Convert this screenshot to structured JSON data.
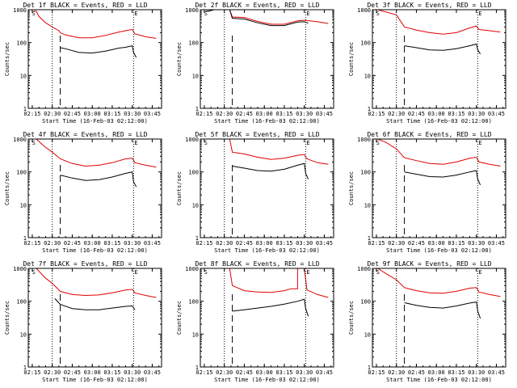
{
  "figure": {
    "background": "#ffffff"
  },
  "colors": {
    "events": "#000000",
    "lld": "#e00000",
    "axis": "#000000"
  },
  "chart_data": [
    {
      "panel": "1f",
      "title": "Det 1f BLACK = Events, RED = LLD",
      "type": "line",
      "ylabel": "Counts/sec",
      "xlabel": "Start Time (16-Feb-03 02:12:00)",
      "x_ticks": [
        "02:15",
        "02:30",
        "02:45",
        "03:00",
        "03:15",
        "03:30",
        "03:45"
      ],
      "y_ticks": [
        "1",
        "10",
        "100",
        "1000"
      ],
      "y_scale": "log",
      "ylim": [
        1,
        1000
      ],
      "xlim": [
        "02:12",
        "03:52"
      ],
      "markers": {
        "S": "02:16",
        "E": "03:31"
      },
      "vlines_dotted": [
        "02:30",
        "03:31"
      ],
      "vline_dashed": "02:36",
      "series": [
        {
          "color": "red",
          "x": [
            "02:16",
            "02:18",
            "02:20",
            "02:25",
            "02:30",
            "02:35",
            "02:36",
            "02:40",
            "02:50",
            "03:00",
            "03:10",
            "03:20",
            "03:25",
            "03:30",
            "03:32",
            "03:40",
            "03:48"
          ],
          "y": [
            900,
            900,
            620,
            400,
            300,
            230,
            200,
            170,
            140,
            140,
            165,
            210,
            230,
            250,
            185,
            150,
            135
          ]
        },
        {
          "color": "black",
          "x": [
            "02:36",
            "02:40",
            "02:50",
            "03:00",
            "03:10",
            "03:20",
            "03:25",
            "03:30",
            "03:31",
            "03:33"
          ],
          "y": [
            70,
            65,
            50,
            48,
            55,
            68,
            72,
            80,
            50,
            35
          ]
        }
      ]
    },
    {
      "panel": "2f",
      "title": "Det 2f BLACK = Events, RED = LLD",
      "type": "line",
      "ylabel": "Counts/sec",
      "xlabel": "Start Time (16-Feb-03 02:12:00)",
      "x_ticks": [
        "02:15",
        "02:30",
        "02:45",
        "03:00",
        "03:15",
        "03:30",
        "03:45"
      ],
      "y_ticks": [
        "1",
        "10",
        "100",
        "1000"
      ],
      "y_scale": "log",
      "ylim": [
        1,
        1000
      ],
      "xlim": [
        "02:12",
        "03:52"
      ],
      "markers": {
        "S": "02:16",
        "E": "03:31"
      },
      "vlines_dotted": [
        "02:30",
        "03:31"
      ],
      "vline_dashed": "02:36",
      "series": [
        {
          "color": "red",
          "x": [
            "02:16",
            "02:18",
            "02:22",
            "02:24",
            "02:34",
            "02:36",
            "02:45",
            "02:55",
            "03:05",
            "03:15",
            "03:25",
            "03:30",
            "03:40",
            "03:48"
          ],
          "y": [
            900,
            900,
            1000,
            1000,
            1000,
            600,
            580,
            440,
            360,
            360,
            460,
            480,
            430,
            380
          ]
        },
        {
          "color": "black",
          "x": [
            "02:16",
            "02:18",
            "02:22",
            "02:24",
            "02:34",
            "02:36",
            "02:45",
            "02:55",
            "03:05",
            "03:15",
            "03:25",
            "03:30",
            "03:33"
          ],
          "y": [
            900,
            900,
            1000,
            1000,
            1000,
            550,
            520,
            400,
            330,
            330,
            420,
            430,
            390
          ]
        }
      ]
    },
    {
      "panel": "3f",
      "title": "Det 3f BLACK = Events, RED = LLD",
      "type": "line",
      "ylabel": "Counts/sec",
      "xlabel": "Start Time (16-Feb-03 02:12:00)",
      "x_ticks": [
        "02:15",
        "02:30",
        "02:45",
        "03:00",
        "03:15",
        "03:30",
        "03:45"
      ],
      "y_ticks": [
        "1",
        "10",
        "100",
        "1000"
      ],
      "y_scale": "log",
      "ylim": [
        1,
        1000
      ],
      "xlim": [
        "02:12",
        "03:52"
      ],
      "markers": {
        "S": "02:16",
        "E": "03:31"
      },
      "vlines_dotted": [
        "02:30",
        "03:31"
      ],
      "vline_dashed": "02:36",
      "series": [
        {
          "color": "red",
          "x": [
            "02:16",
            "02:20",
            "02:30",
            "02:36",
            "02:45",
            "02:55",
            "03:05",
            "03:15",
            "03:25",
            "03:30",
            "03:32",
            "03:40",
            "03:48"
          ],
          "y": [
            1000,
            900,
            700,
            300,
            240,
            200,
            180,
            200,
            280,
            320,
            250,
            230,
            210
          ]
        },
        {
          "color": "black",
          "x": [
            "02:36",
            "02:45",
            "02:55",
            "03:05",
            "03:15",
            "03:25",
            "03:30",
            "03:31",
            "03:33"
          ],
          "y": [
            80,
            70,
            60,
            58,
            65,
            80,
            90,
            60,
            45
          ]
        }
      ]
    },
    {
      "panel": "4f",
      "title": "Det 4f BLACK = Events, RED = LLD",
      "type": "line",
      "ylabel": "Counts/sec",
      "xlabel": "Start Time (16-Feb-03 02:12:00)",
      "x_ticks": [
        "02:15",
        "02:30",
        "02:45",
        "03:00",
        "03:15",
        "03:30",
        "03:45"
      ],
      "y_ticks": [
        "1",
        "10",
        "100",
        "1000"
      ],
      "y_scale": "log",
      "ylim": [
        1,
        1000
      ],
      "xlim": [
        "02:12",
        "03:52"
      ],
      "markers": {
        "S": "02:16",
        "E": "03:31"
      },
      "vlines_dotted": [
        "02:30",
        "03:31"
      ],
      "vline_dashed": "02:36",
      "series": [
        {
          "color": "red",
          "x": [
            "02:18",
            "02:24",
            "02:30",
            "02:36",
            "02:45",
            "02:55",
            "03:05",
            "03:15",
            "03:25",
            "03:30",
            "03:32",
            "03:40",
            "03:48"
          ],
          "y": [
            1000,
            600,
            400,
            250,
            180,
            150,
            160,
            190,
            250,
            260,
            190,
            160,
            140
          ]
        },
        {
          "color": "black",
          "x": [
            "02:36",
            "02:45",
            "02:55",
            "03:05",
            "03:15",
            "03:25",
            "03:30",
            "03:31",
            "03:33"
          ],
          "y": [
            80,
            65,
            55,
            58,
            70,
            90,
            100,
            50,
            35
          ]
        }
      ]
    },
    {
      "panel": "5f",
      "title": "Det 5f BLACK = Events, RED = LLD",
      "type": "line",
      "ylabel": "Counts/sec",
      "xlabel": "Start Time (16-Feb-03 02:12:00)",
      "x_ticks": [
        "02:15",
        "02:30",
        "02:45",
        "03:00",
        "03:15",
        "03:30",
        "03:45"
      ],
      "y_ticks": [
        "1",
        "10",
        "100",
        "1000"
      ],
      "y_scale": "log",
      "ylim": [
        1,
        1000
      ],
      "xlim": [
        "02:12",
        "03:52"
      ],
      "markers": {
        "S": "02:16",
        "E": "03:31"
      },
      "vlines_dotted": [
        "02:30",
        "03:31"
      ],
      "vline_dashed": "02:36",
      "series": [
        {
          "color": "red",
          "x": [
            "02:18",
            "02:24",
            "02:30",
            "02:34",
            "02:36",
            "02:45",
            "02:55",
            "03:05",
            "03:15",
            "03:25",
            "03:30",
            "03:32",
            "03:40",
            "03:48"
          ],
          "y": [
            1000,
            1000,
            1000,
            1000,
            400,
            350,
            280,
            240,
            260,
            320,
            340,
            250,
            190,
            170
          ]
        },
        {
          "color": "black",
          "x": [
            "02:36",
            "02:45",
            "02:55",
            "03:05",
            "03:15",
            "03:25",
            "03:30",
            "03:31",
            "03:33"
          ],
          "y": [
            150,
            130,
            110,
            105,
            120,
            160,
            180,
            90,
            60
          ]
        }
      ]
    },
    {
      "panel": "6f",
      "title": "Det 6f BLACK = Events, RED = LLD",
      "type": "line",
      "ylabel": "Counts/sec",
      "xlabel": "Start Time (16-Feb-03 02:12:00)",
      "x_ticks": [
        "02:15",
        "02:30",
        "02:45",
        "03:00",
        "03:15",
        "03:30",
        "03:45"
      ],
      "y_ticks": [
        "1",
        "10",
        "100",
        "1000"
      ],
      "y_scale": "log",
      "ylim": [
        1,
        1000
      ],
      "xlim": [
        "02:12",
        "03:52"
      ],
      "markers": {
        "S": "02:16",
        "E": "03:31"
      },
      "vlines_dotted": [
        "02:30",
        "03:31"
      ],
      "vline_dashed": "02:36",
      "series": [
        {
          "color": "red",
          "x": [
            "02:16",
            "02:22",
            "02:30",
            "02:36",
            "02:45",
            "02:55",
            "03:05",
            "03:15",
            "03:25",
            "03:30",
            "03:32",
            "03:40",
            "03:48"
          ],
          "y": [
            1000,
            800,
            500,
            270,
            220,
            180,
            170,
            200,
            260,
            280,
            200,
            170,
            150
          ]
        },
        {
          "color": "black",
          "x": [
            "02:36",
            "02:45",
            "02:55",
            "03:05",
            "03:15",
            "03:25",
            "03:30",
            "03:31",
            "03:33"
          ],
          "y": [
            100,
            85,
            72,
            70,
            80,
            100,
            110,
            60,
            40
          ]
        }
      ]
    },
    {
      "panel": "7f",
      "title": "Det 7f BLACK = Events, RED = LLD",
      "type": "line",
      "ylabel": "Counts/sec",
      "xlabel": "Start Time (16-Feb-03 02:12:00)",
      "x_ticks": [
        "02:15",
        "02:30",
        "02:45",
        "03:00",
        "03:15",
        "03:30",
        "03:45"
      ],
      "y_ticks": [
        "1",
        "10",
        "100",
        "1000"
      ],
      "y_scale": "log",
      "ylim": [
        1,
        1000
      ],
      "xlim": [
        "02:12",
        "03:52"
      ],
      "markers": {
        "S": "02:16",
        "E": "03:31"
      },
      "vlines_dotted": [
        "02:30",
        "03:31"
      ],
      "vline_dashed": "02:36",
      "series": [
        {
          "color": "red",
          "x": [
            "02:18",
            "02:25",
            "02:30",
            "02:36",
            "02:45",
            "02:55",
            "03:05",
            "03:15",
            "03:25",
            "03:30",
            "03:32",
            "03:40",
            "03:48"
          ],
          "y": [
            1000,
            500,
            350,
            200,
            160,
            150,
            155,
            180,
            220,
            230,
            180,
            150,
            130
          ]
        },
        {
          "color": "black",
          "x": [
            "02:32",
            "02:36",
            "02:45",
            "02:55",
            "03:05",
            "03:15",
            "03:25",
            "03:30",
            "03:32"
          ],
          "y": [
            120,
            80,
            60,
            55,
            55,
            62,
            70,
            72,
            55
          ]
        }
      ]
    },
    {
      "panel": "8f",
      "title": "Det 8f BLACK = Events, RED = LLD",
      "type": "line",
      "ylabel": "Counts/sec",
      "xlabel": "Start Time (16-Feb-03 02:12:00)",
      "x_ticks": [
        "02:15",
        "02:30",
        "02:45",
        "03:00",
        "03:15",
        "03:30",
        "03:45"
      ],
      "y_ticks": [
        "1",
        "10",
        "100",
        "1000"
      ],
      "y_scale": "log",
      "ylim": [
        1,
        1000
      ],
      "xlim": [
        "02:12",
        "03:52"
      ],
      "markers": {
        "S": "02:16",
        "E": "03:31"
      },
      "vlines_dotted": [
        "02:30",
        "03:31"
      ],
      "vline_dashed": "02:36",
      "series": [
        {
          "color": "red",
          "x": [
            "02:32",
            "02:34",
            "02:36",
            "02:45",
            "02:55",
            "03:05",
            "03:15",
            "03:20",
            "03:25",
            "03:25",
            "03:30",
            "03:32",
            "03:40",
            "03:48"
          ],
          "y": [
            1000,
            1000,
            300,
            210,
            190,
            185,
            210,
            240,
            240,
            1000,
            1000,
            220,
            160,
            130
          ]
        },
        {
          "color": "black",
          "x": [
            "02:36",
            "02:45",
            "02:55",
            "03:05",
            "03:15",
            "03:25",
            "03:30",
            "03:31",
            "03:33"
          ],
          "y": [
            50,
            55,
            62,
            70,
            82,
            100,
            115,
            60,
            35
          ]
        }
      ]
    },
    {
      "panel": "9f",
      "title": "Det 9f BLACK = Events, RED = LLD",
      "type": "line",
      "ylabel": "Counts/sec",
      "xlabel": "Start Time (16-Feb-03 02:12:00)",
      "x_ticks": [
        "02:15",
        "02:30",
        "02:45",
        "03:00",
        "03:15",
        "03:30",
        "03:45"
      ],
      "y_ticks": [
        "1",
        "10",
        "100",
        "1000"
      ],
      "y_scale": "log",
      "ylim": [
        1,
        1000
      ],
      "xlim": [
        "02:12",
        "03:52"
      ],
      "markers": {
        "S": "02:16",
        "E": "03:31"
      },
      "vlines_dotted": [
        "02:30",
        "03:31"
      ],
      "vline_dashed": "02:36",
      "series": [
        {
          "color": "red",
          "x": [
            "02:16",
            "02:22",
            "02:30",
            "02:36",
            "02:45",
            "02:55",
            "03:05",
            "03:15",
            "03:25",
            "03:30",
            "03:32",
            "03:40",
            "03:48"
          ],
          "y": [
            1000,
            700,
            450,
            260,
            210,
            180,
            175,
            200,
            250,
            260,
            190,
            160,
            140
          ]
        },
        {
          "color": "black",
          "x": [
            "02:36",
            "02:45",
            "02:55",
            "03:05",
            "03:15",
            "03:25",
            "03:30",
            "03:31",
            "03:33"
          ],
          "y": [
            90,
            75,
            65,
            62,
            72,
            88,
            95,
            50,
            30
          ]
        }
      ]
    }
  ]
}
